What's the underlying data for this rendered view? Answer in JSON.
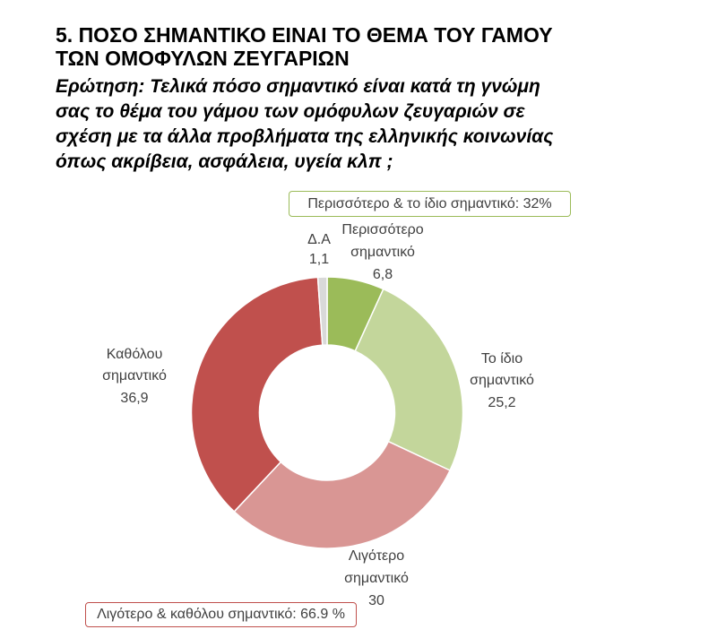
{
  "chart_data": {
    "type": "pie",
    "donut": true,
    "title": [
      "5. ΠΟΣΟ ΣΗΜΑΝΤΙΚΟ ΕΙΝΑΙ ΤΟ ΘΕΜΑ ΤΟΥ ΓΑΜΟΥ",
      "ΤΩΝ ΟΜΟΦΥΛΩΝ ΖΕΥΓΑΡΙΩΝ"
    ],
    "subtitle": [
      "Ερώτηση: Τελικά πόσο σημαντικό είναι κατά τη γνώμη",
      "σας το θέμα του γάμου των ομόφυλων ζευγαριών σε",
      "σχέση με τα άλλα προβλήματα της ελληνικής κοινωνίας",
      "όπως ακρίβεια, ασφάλεια, υγεία κλπ ;"
    ],
    "categories": [
      "Περισσότερο σημαντικό",
      "Το ίδιο σημαντικό",
      "Λιγότερο σημαντικό",
      "Καθόλου σημαντικό",
      "Δ.Α"
    ],
    "values": [
      6.8,
      25.2,
      30,
      36.9,
      1.1
    ],
    "value_labels": [
      "6,8",
      "25,2",
      "30",
      "36,9",
      "1,1"
    ],
    "colors": [
      "#9bbb59",
      "#c3d69b",
      "#d99694",
      "#c0504d",
      "#d9d9d9"
    ],
    "annotations": [
      {
        "text": "Περισσότερο & το ίδιο σημαντικό: 32%",
        "color": "#9bbb59"
      },
      {
        "text": "Λιγότερο & καθόλου σημαντικό: 66.9 %",
        "color": "#c0504d"
      }
    ]
  }
}
